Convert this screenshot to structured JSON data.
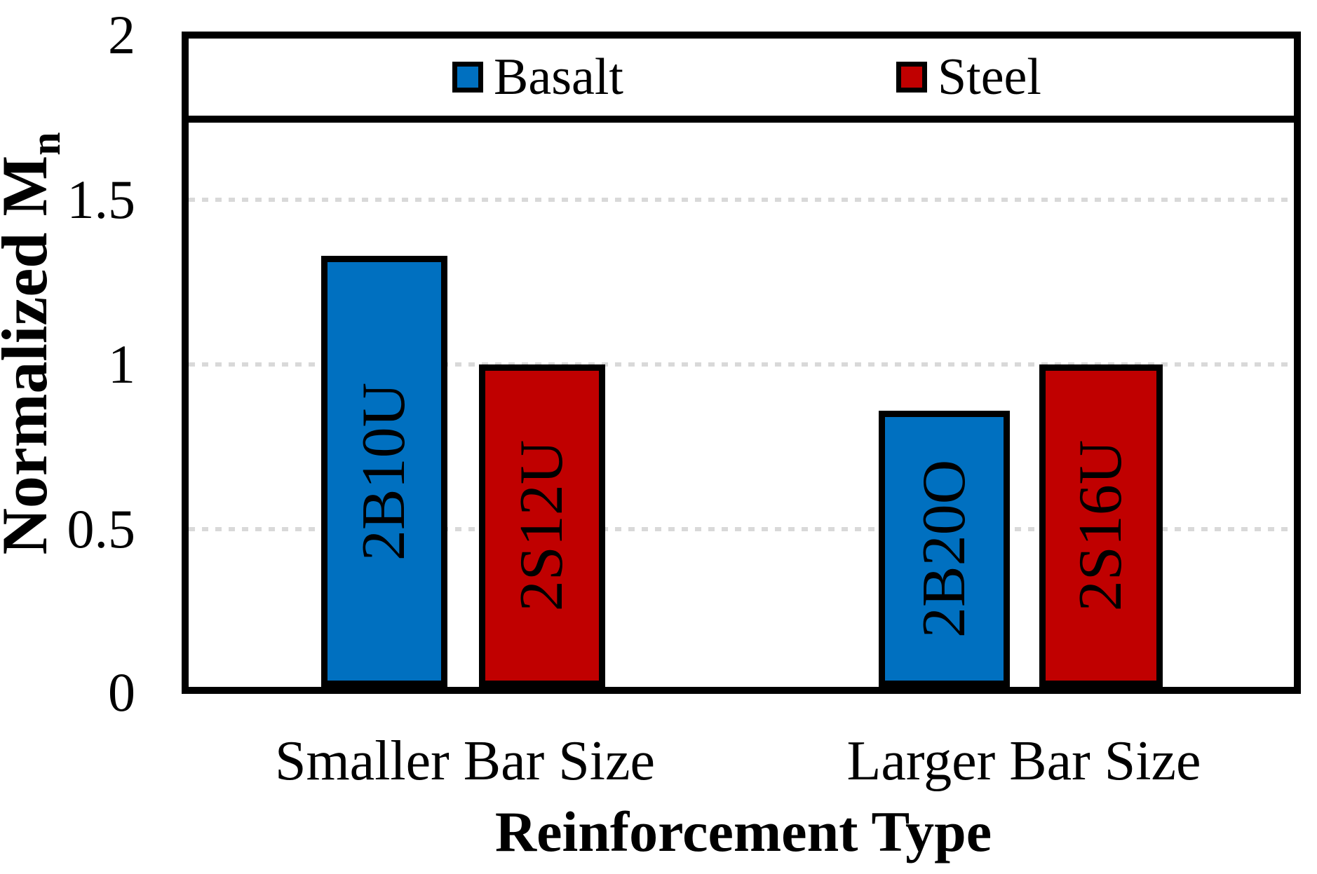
{
  "chart_data": {
    "type": "bar",
    "title": "",
    "xlabel": "Reinforcement Type",
    "ylabel": "Normalized M",
    "ylabel_subscript": "n",
    "categories": [
      "Smaller Bar Size",
      "Larger Bar Size"
    ],
    "series": [
      {
        "name": "Basalt",
        "color": "#0070C0",
        "values": [
          1.33,
          0.86
        ]
      },
      {
        "name": "Steel",
        "color": "#C00000",
        "values": [
          1.0,
          1.0
        ]
      }
    ],
    "bars": [
      {
        "label": "2B10U",
        "series": "Basalt",
        "category": "Smaller Bar Size",
        "value": 1.33,
        "color": "#0070C0"
      },
      {
        "label": "2S12U",
        "series": "Steel",
        "category": "Smaller Bar Size",
        "value": 1.0,
        "color": "#C00000"
      },
      {
        "label": "2B20O",
        "series": "Basalt",
        "category": "Larger Bar Size",
        "value": 0.86,
        "color": "#0070C0"
      },
      {
        "label": "2S16U",
        "series": "Steel",
        "category": "Larger Bar Size",
        "value": 1.0,
        "color": "#C00000"
      }
    ],
    "ylim": [
      0,
      2
    ],
    "ytick_labels": [
      "2",
      "1.5",
      "1",
      "0.5",
      "0"
    ],
    "grid": {
      "axis": "y",
      "values": [
        1.5,
        1.0,
        0.5
      ],
      "style": "dotted",
      "color": "#D9D9D9"
    },
    "legend": {
      "position": "top-inside",
      "entries": [
        "Basalt",
        "Steel"
      ]
    },
    "frame_color": "#000000",
    "background_color": "#FFFFFF"
  }
}
